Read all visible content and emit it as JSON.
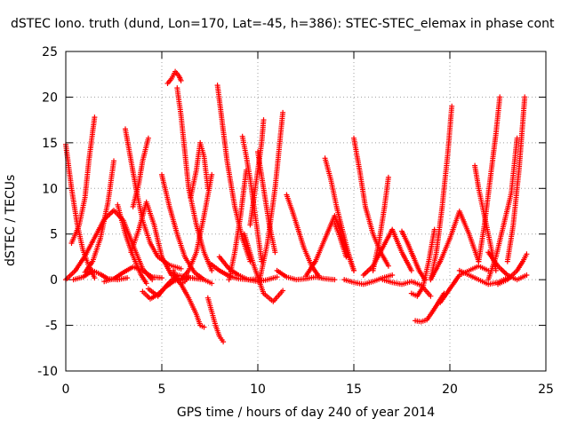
{
  "chart_data": {
    "type": "scatter",
    "title": "dSTEC Iono. truth (dund, Lon=170, Lat=-45, h=386): STEC-STEC_elemax in phase cont",
    "xlabel": "GPS time / hours of day 240 of year 2014",
    "ylabel": "dSTEC  / TECUs",
    "xlim": [
      0,
      25
    ],
    "ylim": [
      -10,
      25
    ],
    "x_ticks": [
      "0",
      "5",
      "10",
      "15",
      "20",
      "25"
    ],
    "y_ticks": [
      "-10",
      "-5",
      "0",
      "5",
      "10",
      "15",
      "20",
      "25"
    ],
    "grid": true,
    "marker": "+",
    "color": "#ff0000",
    "series": [
      {
        "x": [
          0.0,
          0.3,
          0.6,
          0.9,
          1.2,
          1.5
        ],
        "y": [
          14.8,
          10.0,
          6.0,
          3.2,
          1.5,
          0.2
        ]
      },
      {
        "x": [
          0.0,
          0.5,
          1.0,
          1.5,
          2.0,
          2.5,
          3.0,
          3.5,
          4.0,
          4.5
        ],
        "y": [
          0.0,
          1.0,
          2.6,
          4.6,
          6.6,
          7.6,
          6.5,
          3.8,
          1.2,
          0.0
        ]
      },
      {
        "x": [
          0.4,
          0.9,
          1.4,
          1.8,
          2.2,
          2.7,
          3.2
        ],
        "y": [
          0.0,
          0.3,
          1.0,
          0.6,
          0.1,
          0.0,
          0.2
        ]
      },
      {
        "x": [
          0.3,
          0.7,
          1.0,
          1.2,
          1.5
        ],
        "y": [
          4.0,
          6.0,
          9.0,
          13.0,
          17.8
        ]
      },
      {
        "x": [
          1.0,
          1.4,
          1.8,
          2.2,
          2.5
        ],
        "y": [
          0.8,
          2.0,
          4.5,
          8.5,
          13.0
        ]
      },
      {
        "x": [
          2.0,
          2.5,
          3.0,
          3.5,
          4.0,
          4.5,
          5.0
        ],
        "y": [
          -0.2,
          0.1,
          0.8,
          1.4,
          1.0,
          0.3,
          0.2
        ]
      },
      {
        "x": [
          2.7,
          3.1,
          3.5,
          3.9,
          4.2
        ],
        "y": [
          8.2,
          5.0,
          2.6,
          0.6,
          -0.4
        ]
      },
      {
        "x": [
          3.1,
          3.4,
          3.7,
          4.0,
          4.4,
          4.8,
          5.4,
          6.0
        ],
        "y": [
          16.5,
          13.0,
          9.5,
          6.5,
          4.0,
          2.5,
          1.6,
          1.2
        ]
      },
      {
        "x": [
          3.4,
          3.8,
          4.2,
          4.6,
          5.0,
          5.5,
          6.0
        ],
        "y": [
          3.0,
          5.5,
          8.5,
          6.0,
          2.5,
          0.5,
          0.0
        ]
      },
      {
        "x": [
          3.5,
          3.8,
          4.0,
          4.3
        ],
        "y": [
          8.0,
          10.5,
          13.0,
          15.5
        ]
      },
      {
        "x": [
          4.0,
          4.4,
          4.8,
          5.2,
          5.6,
          6.0,
          6.6
        ],
        "y": [
          -1.3,
          -2.1,
          -1.6,
          -0.8,
          -0.2,
          0.1,
          0.2
        ]
      },
      {
        "x": [
          4.3,
          4.8,
          5.3,
          5.8,
          6.5,
          7.2
        ],
        "y": [
          -1.0,
          -1.8,
          -0.5,
          0.5,
          0.2,
          0.0
        ]
      },
      {
        "x": [
          5.0,
          5.4,
          5.8,
          6.2,
          6.7,
          7.2,
          7.6
        ],
        "y": [
          11.5,
          8.0,
          5.0,
          2.5,
          0.8,
          0.0,
          -0.4
        ]
      },
      {
        "x": [
          5.3,
          5.5,
          5.7,
          5.9,
          6.0
        ],
        "y": [
          21.5,
          22.0,
          22.8,
          22.3,
          21.8
        ]
      },
      {
        "x": [
          5.8,
          6.0,
          6.2,
          6.4,
          6.8,
          7.2,
          7.6
        ],
        "y": [
          21.0,
          18.0,
          14.0,
          10.0,
          6.0,
          3.0,
          1.0
        ]
      },
      {
        "x": [
          5.6,
          5.8,
          6.0,
          6.2,
          6.4
        ],
        "y": [
          1.0,
          0.0,
          -0.5,
          -0.2,
          0.4
        ]
      },
      {
        "x": [
          6.0,
          6.4,
          6.8,
          7.2,
          7.6
        ],
        "y": [
          0.0,
          1.0,
          3.0,
          7.0,
          11.5
        ]
      },
      {
        "x": [
          6.0,
          6.4,
          6.8,
          7.0,
          7.2
        ],
        "y": [
          -0.5,
          -2.0,
          -3.8,
          -5.0,
          -5.2
        ]
      },
      {
        "x": [
          6.5,
          6.8,
          7.0,
          7.2,
          7.4
        ],
        "y": [
          9.0,
          12.0,
          15.0,
          13.5,
          10.0
        ]
      },
      {
        "x": [
          7.4,
          7.6,
          7.8,
          8.0,
          8.2
        ],
        "y": [
          -2.0,
          -3.5,
          -5.0,
          -6.2,
          -6.8
        ]
      },
      {
        "x": [
          7.9,
          8.1,
          8.4,
          8.8,
          9.2,
          9.6
        ],
        "y": [
          21.3,
          18.0,
          13.0,
          8.0,
          4.5,
          2.0
        ]
      },
      {
        "x": [
          7.5,
          8.0,
          8.5,
          9.0,
          9.5,
          10.0
        ],
        "y": [
          1.8,
          1.0,
          0.4,
          0.1,
          0.0,
          0.1
        ]
      },
      {
        "x": [
          8.0,
          8.5,
          9.0,
          9.5,
          10.0,
          10.5,
          11.0
        ],
        "y": [
          2.5,
          1.2,
          0.5,
          0.0,
          -0.2,
          0.0,
          0.3
        ]
      },
      {
        "x": [
          8.5,
          8.8,
          9.1,
          9.4
        ],
        "y": [
          0.0,
          3.0,
          7.0,
          12.0
        ]
      },
      {
        "x": [
          9.2,
          9.4,
          9.6,
          9.8,
          10.0,
          10.2
        ],
        "y": [
          15.7,
          13.5,
          11.0,
          8.0,
          5.0,
          2.0
        ]
      },
      {
        "x": [
          9.6,
          9.8,
          10.0,
          10.2,
          10.3
        ],
        "y": [
          6.0,
          9.0,
          12.0,
          15.0,
          17.5
        ]
      },
      {
        "x": [
          9.3,
          9.8,
          10.3,
          10.8,
          11.3
        ],
        "y": [
          5.0,
          1.5,
          -1.5,
          -2.4,
          -1.2
        ]
      },
      {
        "x": [
          10.1,
          10.5,
          10.9,
          11.3
        ],
        "y": [
          0.0,
          4.0,
          10.0,
          18.3
        ]
      },
      {
        "x": [
          10.0,
          10.3,
          10.6,
          10.9
        ],
        "y": [
          14.0,
          10.0,
          6.0,
          3.0
        ]
      },
      {
        "x": [
          11.0,
          11.5,
          12.0,
          12.5,
          13.0,
          13.5,
          14.0
        ],
        "y": [
          1.0,
          0.3,
          0.0,
          0.1,
          0.3,
          0.1,
          0.0
        ]
      },
      {
        "x": [
          11.5,
          11.8,
          12.1,
          12.4,
          12.8,
          13.2
        ],
        "y": [
          9.3,
          7.5,
          5.5,
          3.5,
          1.5,
          0.3
        ]
      },
      {
        "x": [
          12.5,
          13.0,
          13.5,
          14.0,
          14.5,
          15.0
        ],
        "y": [
          0.4,
          2.0,
          4.5,
          7.0,
          4.0,
          1.0
        ]
      },
      {
        "x": [
          13.5,
          13.8,
          14.1,
          14.4,
          14.7,
          15.0
        ],
        "y": [
          13.3,
          11.0,
          8.0,
          5.5,
          3.0,
          1.0
        ]
      },
      {
        "x": [
          14.0,
          14.3,
          14.6
        ],
        "y": [
          6.2,
          4.5,
          2.5
        ]
      },
      {
        "x": [
          14.5,
          15.0,
          15.5,
          16.0,
          16.5,
          17.0
        ],
        "y": [
          0.0,
          -0.3,
          -0.5,
          -0.2,
          0.2,
          0.5
        ]
      },
      {
        "x": [
          15.0,
          15.3,
          15.6,
          16.0,
          16.4,
          16.8
        ],
        "y": [
          15.5,
          12.0,
          8.0,
          5.0,
          3.0,
          1.5
        ]
      },
      {
        "x": [
          15.5,
          16.0,
          16.5,
          17.0,
          17.5,
          18.0
        ],
        "y": [
          0.5,
          1.5,
          3.5,
          5.5,
          3.0,
          1.0
        ]
      },
      {
        "x": [
          16.0,
          16.3,
          16.6,
          16.8
        ],
        "y": [
          1.0,
          4.0,
          8.0,
          11.2
        ]
      },
      {
        "x": [
          16.5,
          17.0,
          17.5,
          18.0,
          18.5,
          19.0
        ],
        "y": [
          0.0,
          -0.3,
          -0.5,
          -0.2,
          -0.6,
          -1.8
        ]
      },
      {
        "x": [
          17.5,
          17.8,
          18.1,
          18.4,
          18.7
        ],
        "y": [
          5.3,
          4.0,
          2.5,
          1.0,
          0.0
        ]
      },
      {
        "x": [
          18.0,
          18.3,
          18.6,
          18.9,
          19.2
        ],
        "y": [
          -1.5,
          -1.8,
          -0.8,
          2.0,
          5.5
        ]
      },
      {
        "x": [
          18.2,
          18.5,
          18.8,
          19.1,
          19.4,
          19.7
        ],
        "y": [
          -4.5,
          -4.6,
          -4.4,
          -3.5,
          -2.5,
          -1.5
        ]
      },
      {
        "x": [
          19.0,
          19.3,
          19.6,
          19.9,
          20.1
        ],
        "y": [
          0.0,
          3.0,
          8.0,
          14.0,
          19.0
        ]
      },
      {
        "x": [
          19.0,
          19.5,
          20.0,
          20.5,
          21.0,
          21.5
        ],
        "y": [
          0.0,
          2.0,
          4.5,
          7.5,
          5.0,
          2.0
        ]
      },
      {
        "x": [
          19.5,
          20.0,
          20.5,
          21.0,
          21.5,
          22.0
        ],
        "y": [
          -2.5,
          -1.0,
          0.5,
          1.0,
          1.5,
          1.0
        ]
      },
      {
        "x": [
          20.5,
          21.0,
          21.5,
          22.0,
          22.5,
          23.0
        ],
        "y": [
          1.0,
          0.5,
          0.0,
          -0.5,
          -0.3,
          0.2
        ]
      },
      {
        "x": [
          21.3,
          21.5,
          21.8,
          22.1,
          22.4
        ],
        "y": [
          12.5,
          10.0,
          7.0,
          4.0,
          1.0
        ]
      },
      {
        "x": [
          21.5,
          21.8,
          22.1,
          22.4,
          22.6
        ],
        "y": [
          2.0,
          6.0,
          11.0,
          16.0,
          20.0
        ]
      },
      {
        "x": [
          22.0,
          22.4,
          22.8,
          23.2,
          23.5
        ],
        "y": [
          0.0,
          2.5,
          6.0,
          9.5,
          15.5
        ]
      },
      {
        "x": [
          22.0,
          22.5,
          23.0,
          23.5,
          24.0
        ],
        "y": [
          3.0,
          1.5,
          0.5,
          0.0,
          0.5
        ]
      },
      {
        "x": [
          22.5,
          23.0,
          23.5,
          23.8,
          24.0
        ],
        "y": [
          -0.5,
          0.0,
          1.0,
          2.0,
          2.8
        ]
      },
      {
        "x": [
          23.0,
          23.3,
          23.6,
          23.9
        ],
        "y": [
          2.0,
          6.0,
          12.0,
          20.0
        ]
      }
    ]
  }
}
